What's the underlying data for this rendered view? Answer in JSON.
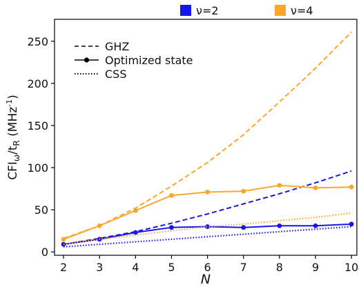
{
  "chart_data": {
    "type": "line",
    "xlabel": "N",
    "ylabel": "CFI",
    "ylabel_sub1": "ω",
    "ylabel_mid": "/t",
    "ylabel_sub2": "R",
    "ylabel_unit": " (MHz",
    "ylabel_sup": "-1",
    "ylabel_close": ")",
    "x": [
      2,
      3,
      4,
      5,
      6,
      7,
      8,
      9,
      10
    ],
    "xlim": [
      1.75,
      10.15
    ],
    "ylim": [
      -4,
      276
    ],
    "xticks": [
      2,
      3,
      4,
      5,
      6,
      7,
      8,
      9,
      10
    ],
    "yticks": [
      0,
      50,
      100,
      150,
      200,
      250
    ],
    "grid": false,
    "colors": {
      "v2": "#1616e8",
      "v4": "#ffa52b"
    },
    "color_legend": [
      {
        "key": "v2",
        "label": "ν=2"
      },
      {
        "key": "v4",
        "label": "ν=4"
      }
    ],
    "style_legend": [
      {
        "style": "dashed",
        "label": "GHZ"
      },
      {
        "style": "solid-marker",
        "label": "Optimized state"
      },
      {
        "style": "dotted",
        "label": "CSS"
      }
    ],
    "series": [
      {
        "color": "v2",
        "style": "dashed",
        "values": [
          9,
          16,
          24,
          34,
          45,
          57,
          69,
          82,
          96
        ]
      },
      {
        "color": "v2",
        "style": "solid-marker",
        "values": [
          9,
          15,
          23,
          29,
          30,
          29,
          31,
          31,
          33
        ]
      },
      {
        "color": "v2",
        "style": "dotted",
        "values": [
          6,
          9,
          12,
          15,
          18,
          21,
          24,
          27,
          30
        ]
      },
      {
        "color": "v4",
        "style": "dashed",
        "values": [
          16,
          31,
          52,
          78,
          106,
          139,
          178,
          218,
          261
        ]
      },
      {
        "color": "v4",
        "style": "solid-marker",
        "values": [
          15,
          31,
          49,
          67,
          71,
          72,
          79,
          76,
          77
        ]
      },
      {
        "color": "v4",
        "style": "dotted",
        "values": [
          9,
          15,
          20,
          25,
          30,
          33,
          37,
          41,
          46
        ]
      }
    ]
  }
}
